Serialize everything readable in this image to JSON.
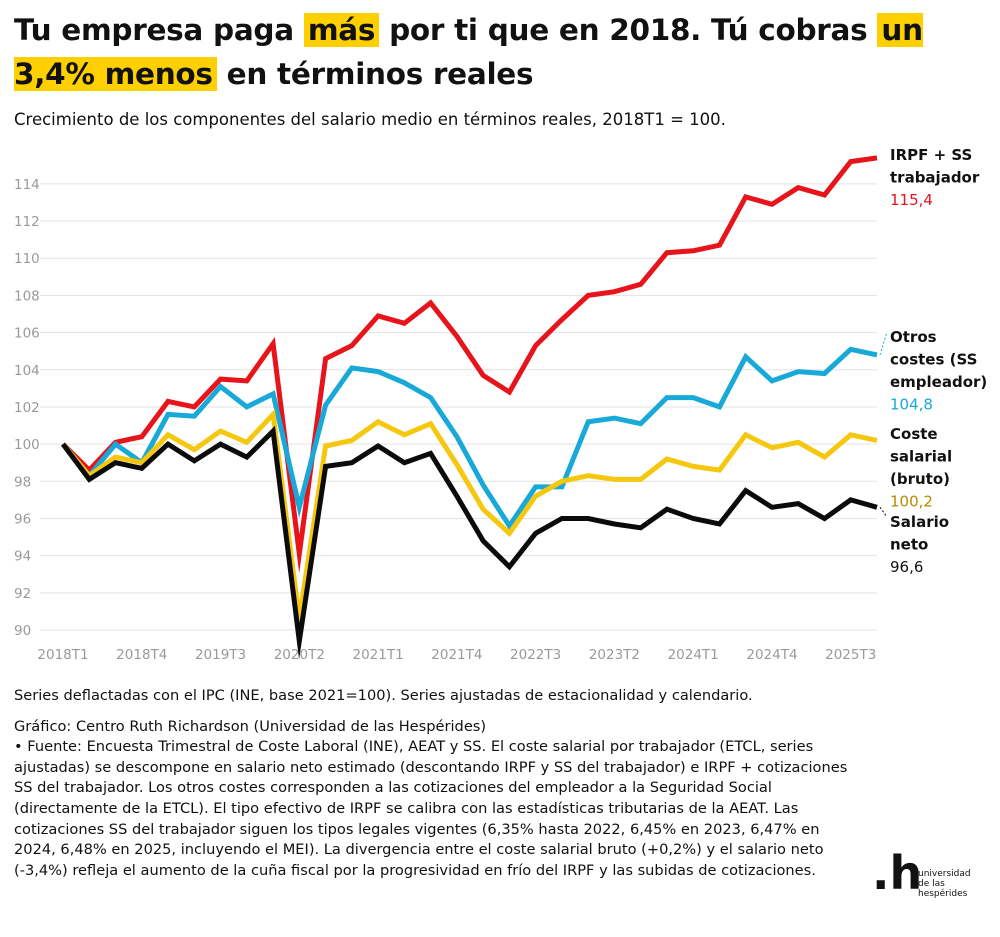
{
  "header": {
    "title_parts": [
      "Tu empresa paga ",
      "más",
      " por ti que en 2018. Tú cobras ",
      "un 3,4% menos",
      " en términos reales"
    ],
    "subtitle": "Crecimiento de los componentes del salario medio en términos reales, 2018T1 = 100."
  },
  "chart_data": {
    "type": "line",
    "title": "Tu empresa paga más por ti que en 2018. Tú cobras un 3,4% menos en términos reales",
    "subtitle": "Crecimiento de los componentes del salario medio en términos reales, 2018T1 = 100.",
    "x": [
      "2018T1",
      "2018T2",
      "2018T3",
      "2018T4",
      "2019T1",
      "2019T2",
      "2019T3",
      "2019T4",
      "2020T1",
      "2020T2",
      "2020T3",
      "2020T4",
      "2021T1",
      "2021T2",
      "2021T3",
      "2021T4",
      "2022T1",
      "2022T2",
      "2022T3",
      "2022T4",
      "2023T1",
      "2023T2",
      "2023T3",
      "2023T4",
      "2024T1",
      "2024T2",
      "2024T3",
      "2024T4",
      "2025T1",
      "2025T2",
      "2025T3",
      "2025T4"
    ],
    "x_tick_labels": [
      "2018T1",
      "2018T4",
      "2019T3",
      "2020T2",
      "2021T1",
      "2021T4",
      "2022T3",
      "2023T2",
      "2024T1",
      "2024T4",
      "2025T3"
    ],
    "x_tick_indices": [
      0,
      3,
      6,
      9,
      12,
      15,
      18,
      21,
      24,
      27,
      30
    ],
    "y_ticks": [
      90,
      92,
      94,
      96,
      98,
      100,
      102,
      104,
      106,
      108,
      110,
      112,
      114
    ],
    "ylim": [
      89.3,
      116.2
    ],
    "grid": "horizontal",
    "xlabel": "",
    "ylabel": "",
    "series": [
      {
        "name_lines": [
          "IRPF + SS",
          "trabajador"
        ],
        "end_label": "115,4",
        "color": "#e8141b",
        "label_color": "#e8141b",
        "values": [
          100.0,
          98.6,
          100.1,
          100.4,
          102.3,
          102.0,
          103.5,
          103.4,
          105.4,
          94.1,
          104.6,
          105.3,
          106.9,
          106.5,
          107.6,
          105.8,
          103.7,
          102.8,
          105.3,
          106.7,
          108.0,
          108.2,
          108.6,
          110.3,
          110.4,
          110.7,
          113.3,
          112.9,
          113.8,
          113.4,
          115.2,
          115.4
        ]
      },
      {
        "name_lines": [
          "Otros",
          "costes (SS",
          "empleador)"
        ],
        "end_label": "104,8",
        "color": "#18a9d9",
        "label_color": "#18a9d9",
        "values": [
          100.0,
          98.3,
          100.0,
          99.0,
          101.6,
          101.5,
          103.1,
          102.0,
          102.7,
          96.6,
          102.1,
          104.1,
          103.9,
          103.3,
          102.5,
          100.4,
          97.8,
          95.6,
          97.7,
          97.7,
          101.2,
          101.4,
          101.1,
          102.5,
          102.5,
          102.0,
          104.7,
          103.4,
          103.9,
          103.8,
          105.1,
          104.8
        ]
      },
      {
        "name_lines": [
          "Coste",
          "salarial",
          "(bruto)"
        ],
        "end_label": "100,2",
        "color": "#f5c80f",
        "label_color": "#b58a00",
        "values": [
          100.0,
          98.3,
          99.3,
          99.0,
          100.5,
          99.7,
          100.7,
          100.1,
          101.6,
          90.6,
          99.9,
          100.2,
          101.2,
          100.5,
          101.1,
          98.9,
          96.5,
          95.2,
          97.2,
          98.0,
          98.3,
          98.1,
          98.1,
          99.2,
          98.8,
          98.6,
          100.5,
          99.8,
          100.1,
          99.3,
          100.5,
          100.2
        ]
      },
      {
        "name_lines": [
          "Salario",
          "neto"
        ],
        "end_label": "96,6",
        "color": "#0b0b0b",
        "label_color": "#111111",
        "values": [
          100.0,
          98.1,
          99.0,
          98.7,
          100.0,
          99.1,
          100.0,
          99.3,
          100.7,
          89.4,
          98.8,
          99.0,
          99.9,
          99.0,
          99.5,
          97.2,
          94.8,
          93.4,
          95.2,
          96.0,
          96.0,
          95.7,
          95.5,
          96.5,
          96.0,
          95.7,
          97.5,
          96.6,
          96.8,
          96.0,
          97.0,
          96.6
        ]
      }
    ]
  },
  "notes": {
    "deflation": "Series deflactadas con el IPC (INE, base 2021=100). Series ajustadas de estacionalidad y calendario.",
    "credit": "Gráfico: Centro Ruth Richardson (Universidad de las Hespérides)",
    "source": " • Fuente: Encuesta Trimestral de Coste Laboral (INE), AEAT y SS. El coste salarial por trabajador (ETCL, series ajustadas) se descompone en salario neto estimado (descontando IRPF y SS del trabajador) e IRPF + cotizaciones SS del trabajador. Los otros costes corresponden a las cotizaciones del empleador a la Seguridad Social (directamente de la ETCL). El tipo efectivo de IRPF se calibra con las estadísticas tributarias de la AEAT. Las cotizaciones SS del trabajador siguen los tipos legales vigentes (6,35% hasta 2022, 6,45% en 2023, 6,47% en 2024, 6,48% en 2025, incluyendo el MEI). La divergencia entre el coste salarial bruto (+0,2%) y el salario neto (-3,4%) refleja el aumento de la cuña fiscal por la progresividad en frío del IRPF y las subidas de cotizaciones."
  },
  "logo": {
    "mark": ".h",
    "lines": [
      "universidad",
      "de las",
      "hespérides"
    ]
  }
}
